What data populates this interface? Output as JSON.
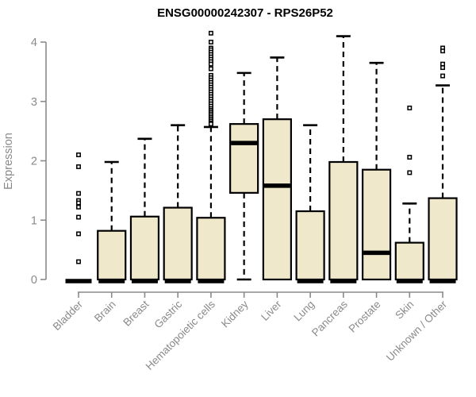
{
  "title": "ENSG00000242307 - RPS26P52",
  "colors": {
    "background": "#ffffff",
    "box_fill": "#efe8cb",
    "box_border": "#000000",
    "median": "#000000",
    "whisker": "#000000",
    "outlier_stroke": "#000000",
    "outlier_fill": "#ffffff",
    "axis": "#8a8a8a",
    "tick_label": "#8a8a8a",
    "title_color": "#000000"
  },
  "chart_data": {
    "type": "boxplot",
    "title": "ENSG00000242307 - RPS26P52",
    "xlabel": "",
    "ylabel": "Expression",
    "ylim": [
      0,
      4
    ],
    "yticks": [
      0,
      1,
      2,
      3,
      4
    ],
    "grid": false,
    "legend": "none",
    "categories": [
      "Bladder",
      "Brain",
      "Breast",
      "Gastric",
      "Hematopoietic cells",
      "Kidney",
      "Liver",
      "Lung",
      "Pancreas",
      "Prostate",
      "Skin",
      "Unknown / Other"
    ],
    "series": [
      {
        "name": "Bladder",
        "q1": 0,
        "median": 0,
        "q3": 0,
        "whisker_low": 0,
        "whisker_high": 0,
        "outliers": [
          2.1,
          1.9,
          1.45,
          1.33,
          1.29,
          1.22,
          1.05,
          0.77,
          0.3
        ]
      },
      {
        "name": "Brain",
        "q1": 0,
        "median": 0,
        "q3": 0.82,
        "whisker_low": 0,
        "whisker_high": 1.98,
        "outliers": []
      },
      {
        "name": "Breast",
        "q1": 0,
        "median": 0,
        "q3": 1.06,
        "whisker_low": 0,
        "whisker_high": 2.37,
        "outliers": []
      },
      {
        "name": "Gastric",
        "q1": 0,
        "median": 0,
        "q3": 1.21,
        "whisker_low": 0,
        "whisker_high": 2.6,
        "outliers": []
      },
      {
        "name": "Hematopoietic cells",
        "q1": 0,
        "median": 0,
        "q3": 1.04,
        "whisker_low": 0,
        "whisker_high": 2.57,
        "outliers": [
          4.15,
          4.0,
          3.9,
          3.87,
          3.83,
          3.79,
          3.75,
          3.71,
          3.67,
          3.63,
          3.55,
          3.44,
          3.4,
          3.36,
          3.32,
          3.28,
          3.24,
          3.2,
          3.16,
          3.12,
          3.08,
          3.04,
          3.0,
          2.96,
          2.92,
          2.88,
          2.85,
          2.82,
          2.79,
          2.76,
          2.73,
          2.7,
          2.67,
          2.64,
          2.62
        ]
      },
      {
        "name": "Kidney",
        "q1": 1.46,
        "median": 2.3,
        "q3": 2.62,
        "whisker_low": 0,
        "whisker_high": 3.48,
        "outliers": []
      },
      {
        "name": "Liver",
        "q1": 0,
        "median": 1.58,
        "q3": 2.7,
        "whisker_low": 0,
        "whisker_high": 3.74,
        "outliers": []
      },
      {
        "name": "Lung",
        "q1": 0,
        "median": 0,
        "q3": 1.15,
        "whisker_low": 0,
        "whisker_high": 2.6,
        "outliers": []
      },
      {
        "name": "Pancreas",
        "q1": 0,
        "median": 0,
        "q3": 1.98,
        "whisker_low": 0,
        "whisker_high": 4.1,
        "outliers": []
      },
      {
        "name": "Prostate",
        "q1": 0,
        "median": 0.45,
        "q3": 1.85,
        "whisker_low": 0,
        "whisker_high": 3.65,
        "outliers": []
      },
      {
        "name": "Skin",
        "q1": 0,
        "median": 0,
        "q3": 0.62,
        "whisker_low": 0,
        "whisker_high": 1.28,
        "outliers": [
          1.8,
          2.06,
          2.89
        ]
      },
      {
        "name": "Unknown / Other",
        "q1": 0,
        "median": 0,
        "q3": 1.37,
        "whisker_low": 0,
        "whisker_high": 3.27,
        "outliers": [
          3.9,
          3.85,
          3.63,
          3.57,
          3.43
        ]
      }
    ]
  }
}
